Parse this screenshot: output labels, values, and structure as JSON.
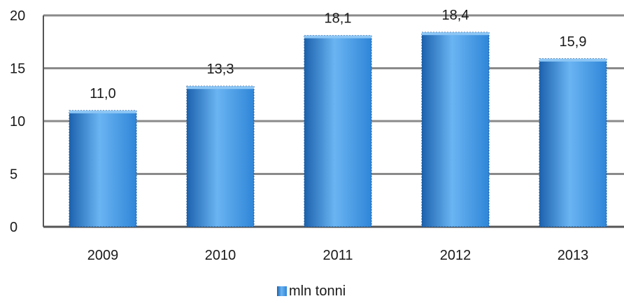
{
  "chart_data": {
    "type": "bar",
    "categories": [
      "2009",
      "2010",
      "2011",
      "2012",
      "2013"
    ],
    "series": [
      {
        "name": "mln tonni",
        "values": [
          11.0,
          13.3,
          18.1,
          18.4,
          15.9
        ]
      }
    ],
    "data_labels": [
      "11,0",
      "13,3",
      "18,1",
      "18,4",
      "15,9"
    ],
    "y_ticks": [
      "0",
      "5",
      "10",
      "15",
      "20"
    ],
    "ylim": [
      0,
      20
    ],
    "grid": true,
    "legend_position": "bottom",
    "colors": {
      "bar": "#2f86d8",
      "bar_light": "#6ab4f2",
      "bar_dark": "#1c62ae",
      "grid": "#8a8a8a",
      "axis": "#555555"
    }
  }
}
